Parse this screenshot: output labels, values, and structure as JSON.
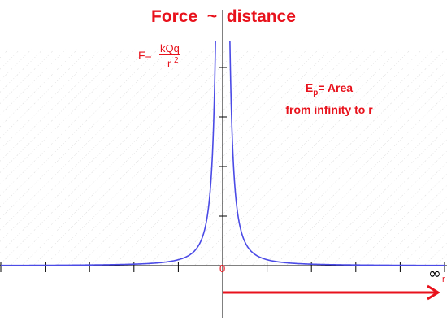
{
  "chart_data": {
    "type": "line",
    "title": "Force  ~  distance",
    "formula": {
      "lhs": "F=",
      "numerator": "kQq",
      "denominator": "r",
      "exponent": "2"
    },
    "annotation": {
      "symbol": "E",
      "subscript": "p",
      "line1_rest": "= Area",
      "line2": "from infinity to r"
    },
    "xlabel": "r",
    "origin_label": "0",
    "infinity_label": "∞",
    "xlim": [
      -5,
      5
    ],
    "ylim": [
      0,
      4
    ],
    "x_ticks": [
      -5,
      -4,
      -3,
      -2,
      -1,
      1,
      2,
      3,
      4,
      5
    ],
    "y_ticks": [
      1,
      2,
      3,
      4
    ],
    "series": [
      {
        "function": "y = k / x^2",
        "k": 0.12,
        "x_domain": [
          -5,
          5
        ],
        "color": "#4b4be6"
      }
    ],
    "arrow": {
      "from_x": 0,
      "to_x": 5,
      "color": "#e8121c"
    },
    "hatching": true
  }
}
